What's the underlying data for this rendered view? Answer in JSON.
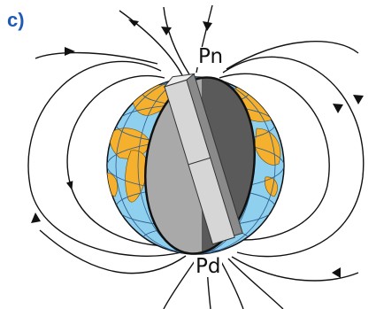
{
  "panel_label": "c)",
  "poles": {
    "north": "Pn",
    "south": "Pd"
  },
  "colors": {
    "ocean": "#8fd0ef",
    "land": "#f5b02e",
    "grid": "#2d5a8a",
    "section_left": "#a9a9a9",
    "section_right": "#5a5a5a",
    "magnet_front": "#d6d6d6",
    "magnet_side": "#8a8a8a",
    "outline": "#111111",
    "label": "#1f5bb5"
  },
  "icons": [
    "field-line-arrow-icon"
  ]
}
